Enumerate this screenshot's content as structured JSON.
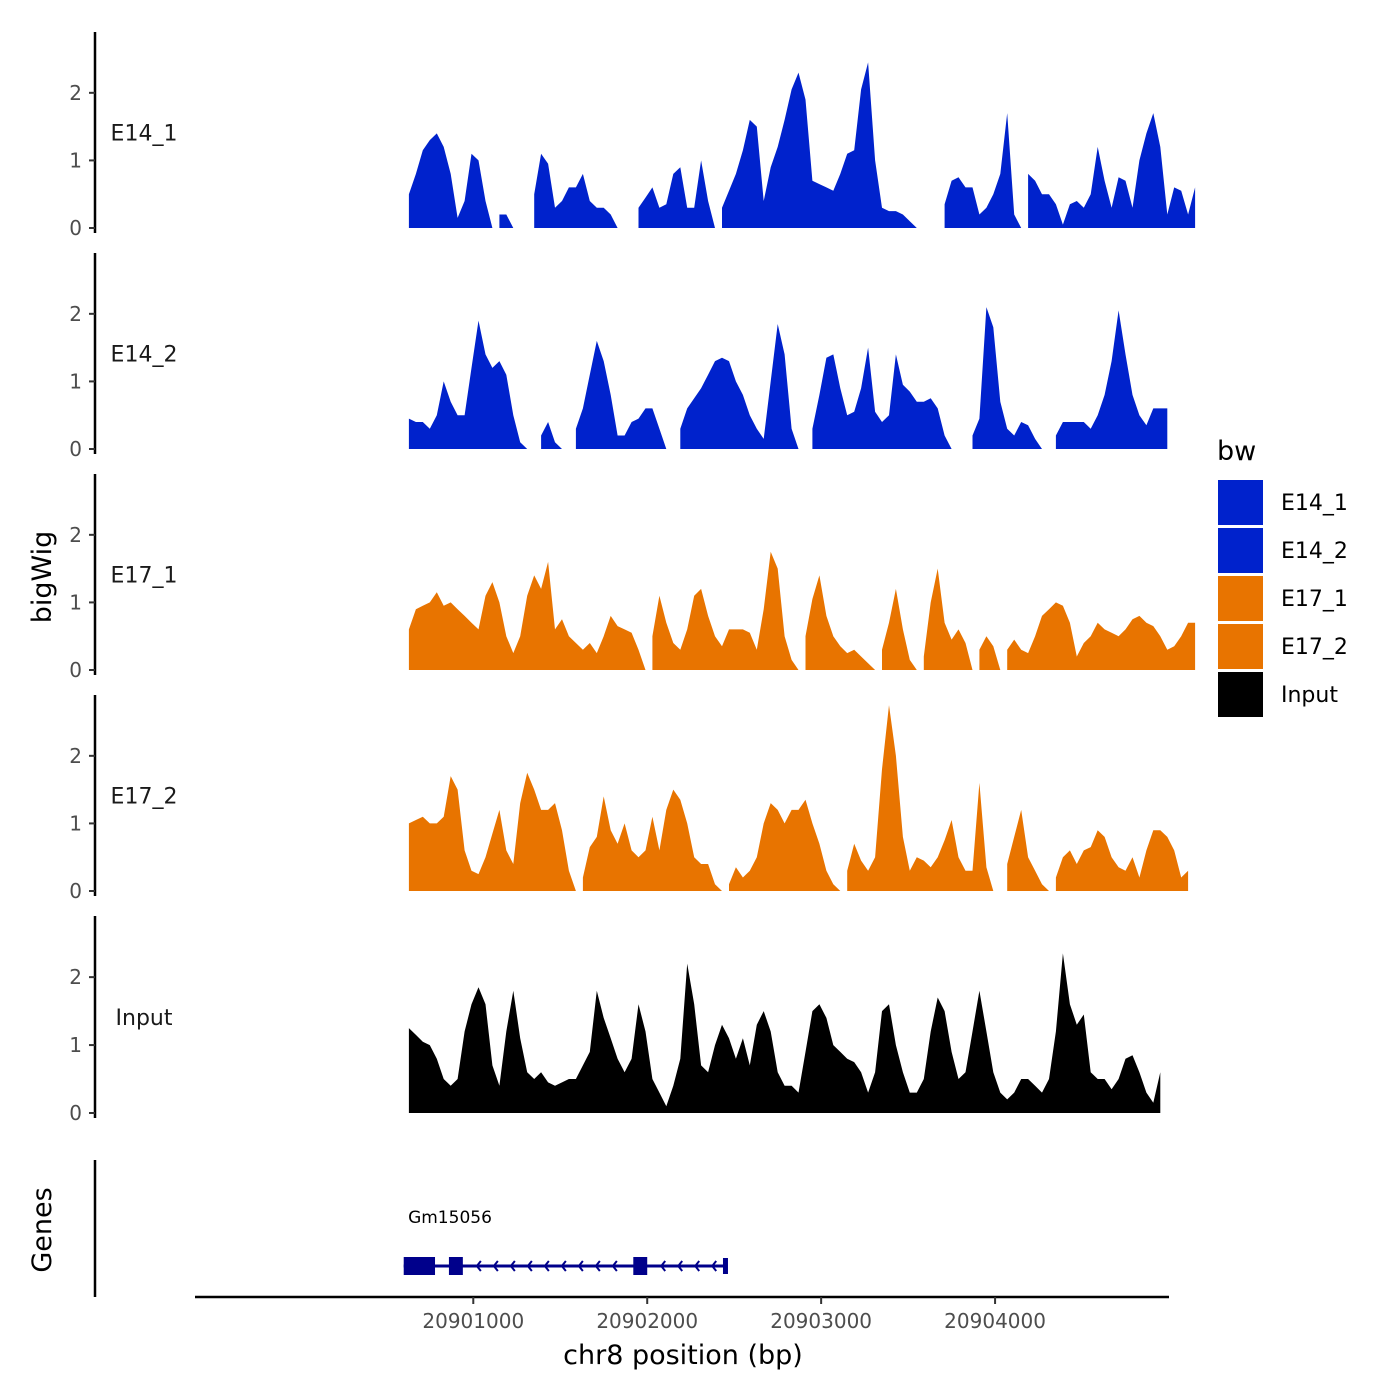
{
  "chart_data": {
    "type": "area",
    "xlabel": "chr8 position (bp)",
    "ylabel": "bigWig",
    "genes_label": "Genes",
    "legend_title": "bw",
    "xlim": [
      20899400,
      20905000
    ],
    "ylim": [
      0,
      2.9
    ],
    "yticks": [
      0,
      1,
      2
    ],
    "xticks": [
      20901000,
      20902000,
      20903000,
      20904000
    ],
    "xtick_labels": [
      "20901000",
      "20902000",
      "20903000",
      "20904000"
    ],
    "colors": {
      "E14_1": "#0022cc",
      "E14_2": "#0022cc",
      "E17_1": "#e87400",
      "E17_2": "#e87400",
      "Input": "#000000",
      "gene": "#00008b"
    },
    "x_start": 20900630,
    "x_step": 40,
    "tracks": [
      {
        "name": "E14_1",
        "values": [
          0.5,
          0.8,
          1.15,
          1.3,
          1.4,
          1.2,
          0.8,
          0.15,
          0.4,
          1.1,
          1.0,
          0.4,
          0,
          0.2,
          0.2,
          0,
          0,
          0,
          0.5,
          1.1,
          0.95,
          0.3,
          0.4,
          0.6,
          0.6,
          0.8,
          0.4,
          0.3,
          0.3,
          0.2,
          0,
          0,
          0,
          0.3,
          0.45,
          0.6,
          0.3,
          0.35,
          0.8,
          0.9,
          0.3,
          0.3,
          1.0,
          0.4,
          0,
          0.3,
          0.55,
          0.8,
          1.15,
          1.6,
          1.5,
          0.4,
          0.9,
          1.2,
          1.6,
          2.05,
          2.3,
          1.9,
          0.7,
          0.65,
          0.6,
          0.55,
          0.8,
          1.1,
          1.15,
          2.05,
          2.45,
          1.0,
          0.3,
          0.25,
          0.25,
          0.2,
          0.1,
          0,
          0,
          0,
          0,
          0.35,
          0.7,
          0.75,
          0.6,
          0.6,
          0.2,
          0.3,
          0.5,
          0.8,
          1.7,
          0.2,
          0,
          0.8,
          0.7,
          0.5,
          0.5,
          0.35,
          0.05,
          0.35,
          0.4,
          0.3,
          0.5,
          1.2,
          0.7,
          0.3,
          0.75,
          0.7,
          0.3,
          1.0,
          1.4,
          1.7,
          1.2,
          0.2,
          0.6,
          0.55,
          0.2,
          0.6
        ]
      },
      {
        "name": "E14_2",
        "values": [
          0.45,
          0.4,
          0.4,
          0.3,
          0.5,
          1.0,
          0.7,
          0.5,
          0.5,
          1.2,
          1.9,
          1.4,
          1.2,
          1.3,
          1.1,
          0.5,
          0.1,
          0,
          0,
          0.2,
          0.4,
          0.1,
          0,
          0,
          0.3,
          0.6,
          1.1,
          1.6,
          1.3,
          0.8,
          0.2,
          0.2,
          0.4,
          0.45,
          0.6,
          0.6,
          0.3,
          0,
          0,
          0.3,
          0.6,
          0.75,
          0.9,
          1.1,
          1.3,
          1.35,
          1.3,
          1.0,
          0.8,
          0.5,
          0.3,
          0.15,
          1.0,
          1.85,
          1.4,
          0.3,
          0,
          0,
          0.3,
          0.8,
          1.35,
          1.4,
          0.9,
          0.5,
          0.55,
          0.9,
          1.5,
          0.55,
          0.4,
          0.5,
          1.4,
          0.95,
          0.85,
          0.7,
          0.7,
          0.75,
          0.6,
          0.2,
          0,
          0,
          0,
          0.2,
          0.45,
          2.1,
          1.8,
          0.7,
          0.3,
          0.2,
          0.4,
          0.35,
          0.15,
          0,
          0,
          0.2,
          0.4,
          0.4,
          0.4,
          0.4,
          0.3,
          0.5,
          0.8,
          1.3,
          2.05,
          1.4,
          0.8,
          0.5,
          0.35,
          0.6,
          0.6,
          0.6
        ]
      },
      {
        "name": "E17_1",
        "values": [
          0.6,
          0.9,
          0.95,
          1.0,
          1.15,
          0.95,
          1.0,
          0.9,
          0.8,
          0.7,
          0.6,
          1.1,
          1.3,
          1.0,
          0.5,
          0.25,
          0.5,
          1.1,
          1.4,
          1.2,
          1.6,
          0.6,
          0.75,
          0.5,
          0.4,
          0.3,
          0.4,
          0.25,
          0.5,
          0.8,
          0.65,
          0.6,
          0.55,
          0.3,
          0,
          0.5,
          1.1,
          0.7,
          0.4,
          0.3,
          0.6,
          1.1,
          1.2,
          0.8,
          0.5,
          0.35,
          0.6,
          0.6,
          0.6,
          0.55,
          0.3,
          0.9,
          1.75,
          1.5,
          0.5,
          0.15,
          0,
          0.5,
          1.05,
          1.4,
          0.8,
          0.5,
          0.35,
          0.25,
          0.3,
          0.2,
          0.1,
          0,
          0.3,
          0.7,
          1.2,
          0.6,
          0.15,
          0,
          0.2,
          1.0,
          1.5,
          0.7,
          0.45,
          0.6,
          0.4,
          0,
          0.3,
          0.5,
          0.35,
          0,
          0.3,
          0.45,
          0.3,
          0.25,
          0.5,
          0.8,
          0.9,
          1.0,
          0.95,
          0.7,
          0.2,
          0.4,
          0.5,
          0.7,
          0.6,
          0.55,
          0.5,
          0.6,
          0.75,
          0.8,
          0.7,
          0.65,
          0.5,
          0.3,
          0.35,
          0.5,
          0.7,
          0.7
        ]
      },
      {
        "name": "E17_2",
        "values": [
          1.0,
          1.05,
          1.1,
          1.0,
          1.0,
          1.1,
          1.7,
          1.5,
          0.6,
          0.3,
          0.25,
          0.5,
          0.85,
          1.2,
          0.6,
          0.4,
          1.3,
          1.75,
          1.5,
          1.2,
          1.2,
          1.3,
          0.9,
          0.3,
          0,
          0.2,
          0.65,
          0.8,
          1.4,
          0.9,
          0.7,
          1.0,
          0.6,
          0.5,
          0.6,
          1.1,
          0.6,
          1.2,
          1.5,
          1.35,
          1.0,
          0.5,
          0.4,
          0.4,
          0.1,
          0,
          0.1,
          0.35,
          0.2,
          0.3,
          0.5,
          1.0,
          1.3,
          1.2,
          1.0,
          1.2,
          1.2,
          1.35,
          1.0,
          0.7,
          0.3,
          0.1,
          0,
          0.3,
          0.7,
          0.45,
          0.3,
          0.5,
          1.8,
          2.75,
          2.0,
          0.8,
          0.3,
          0.5,
          0.45,
          0.35,
          0.5,
          0.75,
          1.05,
          0.5,
          0.3,
          0.3,
          1.6,
          0.35,
          0,
          0,
          0.4,
          0.8,
          1.2,
          0.5,
          0.3,
          0.1,
          0,
          0.2,
          0.5,
          0.6,
          0.4,
          0.6,
          0.65,
          0.9,
          0.8,
          0.5,
          0.35,
          0.3,
          0.5,
          0.2,
          0.6,
          0.9,
          0.9,
          0.8,
          0.6,
          0.2,
          0.3
        ]
      },
      {
        "name": "Input",
        "values": [
          1.25,
          1.15,
          1.05,
          1.0,
          0.8,
          0.5,
          0.4,
          0.5,
          1.2,
          1.6,
          1.85,
          1.6,
          0.7,
          0.4,
          1.2,
          1.8,
          1.1,
          0.6,
          0.5,
          0.6,
          0.45,
          0.4,
          0.45,
          0.5,
          0.5,
          0.7,
          0.9,
          1.8,
          1.4,
          1.1,
          0.8,
          0.6,
          0.8,
          1.6,
          1.2,
          0.5,
          0.3,
          0.1,
          0.4,
          0.8,
          2.2,
          1.6,
          0.7,
          0.6,
          1.0,
          1.3,
          1.1,
          0.8,
          1.1,
          0.7,
          1.3,
          1.5,
          1.2,
          0.6,
          0.4,
          0.4,
          0.3,
          0.9,
          1.5,
          1.6,
          1.4,
          1.0,
          0.9,
          0.8,
          0.75,
          0.6,
          0.3,
          0.6,
          1.5,
          1.6,
          1.0,
          0.6,
          0.3,
          0.3,
          0.5,
          1.2,
          1.7,
          1.5,
          0.9,
          0.5,
          0.6,
          1.2,
          1.8,
          1.2,
          0.6,
          0.3,
          0.2,
          0.3,
          0.5,
          0.5,
          0.4,
          0.3,
          0.5,
          1.2,
          2.35,
          1.6,
          1.3,
          1.45,
          0.6,
          0.5,
          0.5,
          0.35,
          0.5,
          0.8,
          0.85,
          0.6,
          0.3,
          0.15,
          0.6
        ]
      }
    ],
    "legend": [
      {
        "label": "E14_1",
        "color": "#0022cc"
      },
      {
        "label": "E14_2",
        "color": "#0022cc"
      },
      {
        "label": "E17_1",
        "color": "#e87400"
      },
      {
        "label": "E17_2",
        "color": "#e87400"
      },
      {
        "label": "Input",
        "color": "#000000"
      }
    ],
    "gene": {
      "name": "Gm15056",
      "strand": "-",
      "start": 20900600,
      "end": 20902450,
      "exons": [
        [
          20900600,
          20900780
        ],
        [
          20900860,
          20900940
        ],
        [
          20901920,
          20902000
        ]
      ]
    }
  }
}
